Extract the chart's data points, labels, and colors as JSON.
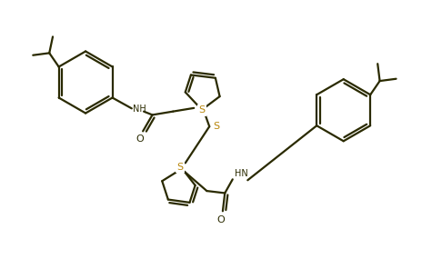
{
  "bg_color": "#ffffff",
  "line_color": "#2a2a00",
  "s_color": "#b8860b",
  "o_color": "#2a2a00",
  "n_color": "#2a2a00",
  "linewidth": 1.6,
  "figsize": [
    4.86,
    2.85
  ],
  "dpi": 100,
  "xlim": [
    0,
    10
  ],
  "ylim": [
    0,
    6
  ]
}
